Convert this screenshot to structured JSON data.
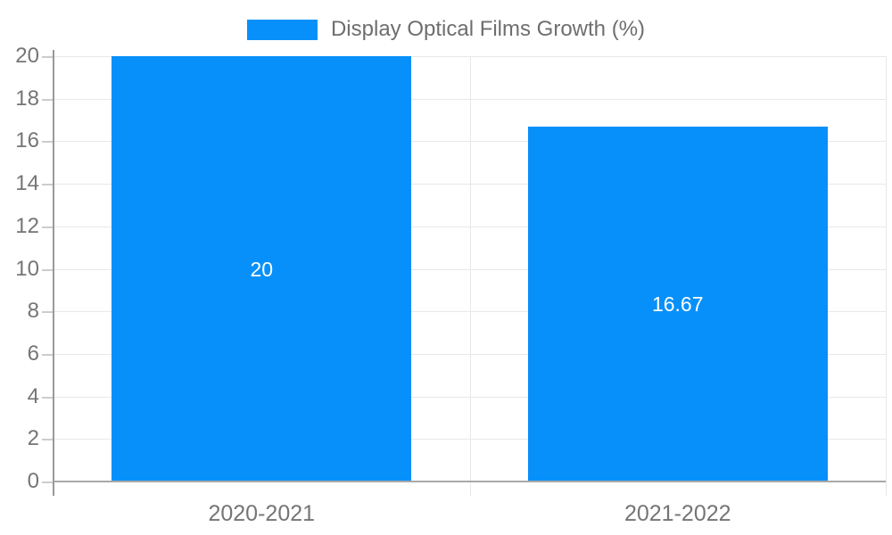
{
  "chart_data": {
    "type": "bar",
    "title": "",
    "legend": "Display Optical Films Growth (%)",
    "legend_position": "top-center",
    "categories": [
      "2020-2021",
      "2021-2022"
    ],
    "values": [
      20,
      16.67
    ],
    "value_labels": [
      "20",
      "16.67"
    ],
    "ylim": [
      0,
      20
    ],
    "yticks": [
      0,
      2,
      4,
      6,
      8,
      10,
      12,
      14,
      16,
      18,
      20
    ],
    "grid": true,
    "colors": {
      "bar": "#0890fa",
      "value_label": "#ffffff",
      "axis_label": "#757575",
      "legend_text": "#6e6e6e",
      "gridline": "#e8e8e8",
      "axis_line": "#999999",
      "baseline": "#a8a8a8",
      "tick": "#cccccc",
      "background": "#ffffff"
    }
  }
}
